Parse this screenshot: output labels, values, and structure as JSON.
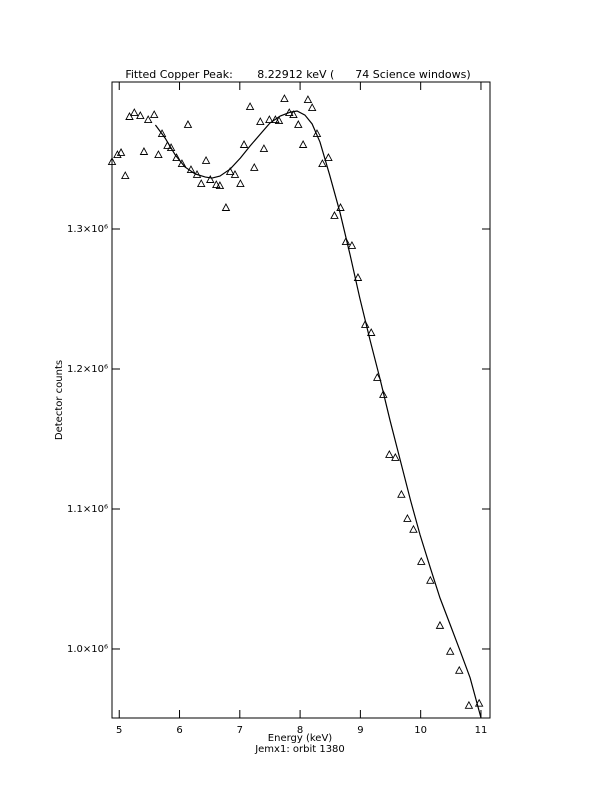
{
  "chart_data": {
    "type": "scatter",
    "title": "Fitted Copper Peak:       8.22912 keV (      74 Science windows)",
    "x_label": "Energy (keV)",
    "subtitle": "Jemx1: orbit 1380",
    "y_label": "Detector counts",
    "xlim": [
      4.88,
      11.15
    ],
    "xticks": [
      5,
      6,
      7,
      8,
      9,
      10,
      11
    ],
    "ylim": [
      950700,
      1405000
    ],
    "yticks": [
      {
        "value": 1000000,
        "label": "1.0×10⁶"
      },
      {
        "value": 1100000,
        "label": "1.1×10⁶"
      },
      {
        "value": 1200000,
        "label": "1.2×10⁶"
      },
      {
        "value": 1300000,
        "label": "1.3×10⁶"
      }
    ],
    "color": "#000000",
    "series": [
      {
        "marker": "triangle",
        "x": [
          4.88,
          4.97,
          5.03,
          5.1,
          5.17,
          5.25,
          5.35,
          5.41,
          5.48,
          5.58,
          5.65,
          5.71,
          5.8,
          5.86,
          5.95,
          6.04,
          6.14,
          6.19,
          6.29,
          6.36,
          6.44,
          6.51,
          6.61,
          6.67,
          6.77,
          6.84,
          6.92,
          7.01,
          7.07,
          7.17,
          7.24,
          7.34,
          7.4,
          7.49,
          7.59,
          7.65,
          7.74,
          7.82,
          7.89,
          7.97,
          8.05,
          8.13,
          8.2,
          8.28,
          8.37,
          8.47,
          8.57,
          8.67,
          8.76,
          8.86,
          8.96,
          9.08,
          9.18,
          9.28,
          9.38,
          9.48,
          9.58,
          9.68,
          9.78,
          9.88,
          10.01,
          10.16,
          10.32,
          10.49,
          10.64,
          10.8,
          10.97
        ],
        "values": [
          1347800,
          1352800,
          1354300,
          1337800,
          1380000,
          1382800,
          1380700,
          1355000,
          1377800,
          1381400,
          1352800,
          1367800,
          1359300,
          1357800,
          1350700,
          1346400,
          1374300,
          1342100,
          1338600,
          1332100,
          1348600,
          1335000,
          1331400,
          1330700,
          1315000,
          1340700,
          1338600,
          1332100,
          1360000,
          1387100,
          1343600,
          1376400,
          1357100,
          1377800,
          1377800,
          1377100,
          1392800,
          1382800,
          1381400,
          1374300,
          1360000,
          1392100,
          1386400,
          1367800,
          1346400,
          1350700,
          1309300,
          1315000,
          1290700,
          1287900,
          1265000,
          1231500,
          1225700,
          1193600,
          1181500,
          1138600,
          1136500,
          1110100,
          1092900,
          1085100,
          1062200,
          1048700,
          1016500,
          998000,
          984400,
          959400,
          960900
        ]
      },
      {
        "marker": "line",
        "x": [
          5.6,
          5.76,
          5.93,
          6.09,
          6.26,
          6.43,
          6.54,
          6.67,
          6.84,
          7.01,
          7.17,
          7.34,
          7.5,
          7.67,
          7.84,
          7.95,
          8.08,
          8.2,
          8.33,
          8.49,
          8.66,
          8.83,
          8.99,
          9.16,
          9.33,
          9.49,
          9.66,
          9.83,
          9.99,
          10.16,
          10.32,
          10.49,
          10.66,
          10.82,
          11.0
        ],
        "values": [
          1374300,
          1365000,
          1352800,
          1344300,
          1339300,
          1337100,
          1336400,
          1337800,
          1342800,
          1350700,
          1359300,
          1367800,
          1375700,
          1380700,
          1383500,
          1384300,
          1381400,
          1375000,
          1362100,
          1338600,
          1312100,
          1281400,
          1250700,
          1220700,
          1192200,
          1163600,
          1135100,
          1106500,
          1081500,
          1058000,
          1036500,
          1017300,
          998000,
          979400,
          950900
        ]
      }
    ]
  }
}
